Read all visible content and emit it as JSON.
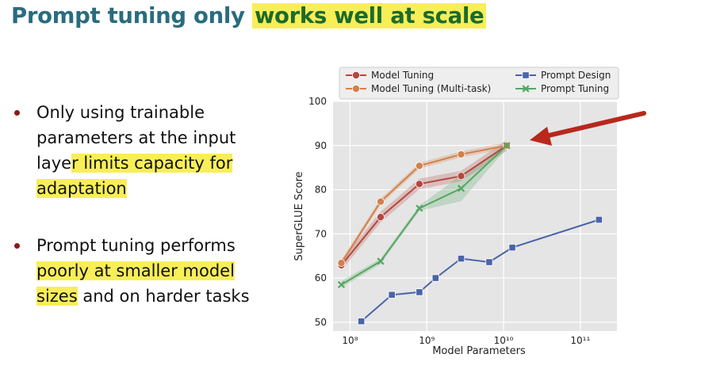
{
  "slide": {
    "title_plain": "Prompt tuning only ",
    "title_highlight": "works well at scale",
    "bullet1_a": "Only using trainable parameters at the input laye",
    "bullet1_b": "r limits capacity for adaptation",
    "bullet2_a": "Prompt tuning performs ",
    "bullet2_b": "poorly at smaller model sizes",
    "bullet2_c": " and on harder tasks"
  },
  "colors": {
    "title": "#2a6c7e",
    "title_highlight_text": "#1c6b2a",
    "highlight": "#f8ee58",
    "arrow": "#b8281c",
    "plot_bg": "#e5e5e5"
  },
  "chart_data": {
    "type": "line",
    "xlabel": "Model Parameters",
    "ylabel": "SuperGLUE Score",
    "xscale": "log",
    "xlim": [
      60000000,
      300000000000
    ],
    "ylim": [
      48,
      100
    ],
    "xticks": [
      100000000,
      1000000000,
      10000000000,
      100000000000
    ],
    "xtick_labels": [
      "10⁸",
      "10⁹",
      "10¹⁰",
      "10¹¹"
    ],
    "yticks": [
      50,
      60,
      70,
      80,
      90,
      100
    ],
    "grid": true,
    "legend_position": "top",
    "series": [
      {
        "name": "Model Tuning",
        "color": "#b5473f",
        "marker": "circle",
        "band": 1.2,
        "points": [
          [
            77000000,
            62.9
          ],
          [
            250000000,
            73.8
          ],
          [
            800000000,
            81.3
          ],
          [
            2800000000,
            83.1
          ],
          [
            11000000000,
            90.0
          ]
        ]
      },
      {
        "name": "Model Tuning (Multi-task)",
        "color": "#d4804a",
        "marker": "circle",
        "band": 0.7,
        "points": [
          [
            77000000,
            63.4
          ],
          [
            250000000,
            77.3
          ],
          [
            800000000,
            85.4
          ],
          [
            2800000000,
            88.0
          ],
          [
            11000000000,
            90.0
          ]
        ]
      },
      {
        "name": "Prompt Design",
        "color": "#4a64a8",
        "marker": "square",
        "band": 0,
        "points": [
          [
            140000000,
            50.2
          ],
          [
            350000000,
            56.2
          ],
          [
            800000000,
            56.8
          ],
          [
            1300000000,
            60.0
          ],
          [
            2800000000,
            64.4
          ],
          [
            6500000000,
            63.6
          ],
          [
            13000000000,
            66.9
          ],
          [
            175000000000,
            73.2
          ]
        ]
      },
      {
        "name": "Prompt Tuning",
        "color": "#55a662",
        "marker": "x",
        "band_lower": [
          57.8,
          63.2,
          75.2,
          77.4,
          89.4
        ],
        "band_upper": [
          59.3,
          64.4,
          76.4,
          83.3,
          90.4
        ],
        "points": [
          [
            77000000,
            58.5
          ],
          [
            250000000,
            63.8
          ],
          [
            800000000,
            75.8
          ],
          [
            2800000000,
            80.3
          ],
          [
            11000000000,
            90.0
          ]
        ]
      }
    ],
    "annotation": {
      "type": "arrow",
      "points_to": "Prompt Tuning",
      "at": [
        11000000000,
        90.0
      ]
    }
  }
}
